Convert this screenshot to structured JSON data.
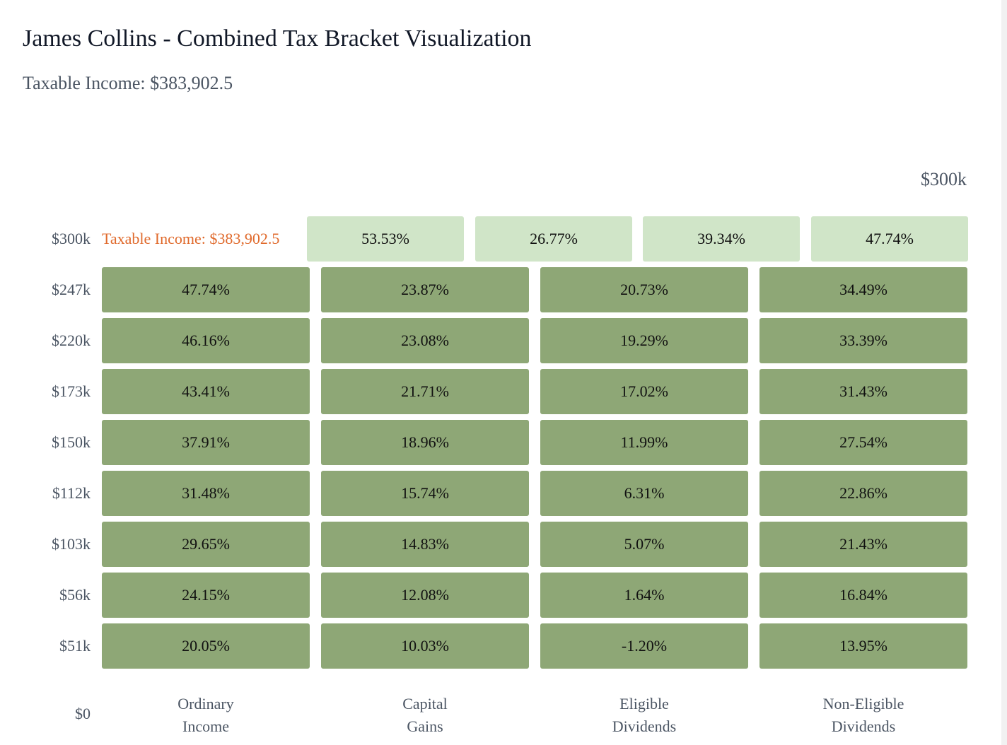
{
  "page": {
    "title": "James Collins - Combined Tax Bracket Visualization",
    "subtitle": "Taxable Income: $383,902.5",
    "top_tick": "$300k",
    "income_marker": "Taxable Income: $383,902.5"
  },
  "colors": {
    "filled_bracket": "#8ea776",
    "top_bracket": "#d0e5c8",
    "marker": "#e06a2c"
  },
  "chart_data": {
    "type": "heatmap",
    "title": "James Collins - Combined Tax Bracket Visualization",
    "subtitle": "Taxable Income: $383,902.5",
    "columns": [
      {
        "line1": "Ordinary",
        "line2": "Income"
      },
      {
        "line1": "Capital",
        "line2": "Gains"
      },
      {
        "line1": "Eligible",
        "line2": "Dividends"
      },
      {
        "line1": "Non-Eligible",
        "line2": "Dividends"
      }
    ],
    "y_tick_labels": [
      "$300k",
      "$247k",
      "$220k",
      "$173k",
      "$150k",
      "$112k",
      "$103k",
      "$56k",
      "$51k",
      "$0"
    ],
    "rows": [
      {
        "threshold": "$300k",
        "values": [
          "53.53%",
          "26.77%",
          "39.34%",
          "47.74%"
        ]
      },
      {
        "threshold": "$247k",
        "values": [
          "47.74%",
          "23.87%",
          "20.73%",
          "34.49%"
        ]
      },
      {
        "threshold": "$220k",
        "values": [
          "46.16%",
          "23.08%",
          "19.29%",
          "33.39%"
        ]
      },
      {
        "threshold": "$173k",
        "values": [
          "43.41%",
          "21.71%",
          "17.02%",
          "31.43%"
        ]
      },
      {
        "threshold": "$150k",
        "values": [
          "37.91%",
          "18.96%",
          "11.99%",
          "27.54%"
        ]
      },
      {
        "threshold": "$112k",
        "values": [
          "31.48%",
          "15.74%",
          "6.31%",
          "22.86%"
        ]
      },
      {
        "threshold": "$103k",
        "values": [
          "29.65%",
          "14.83%",
          "5.07%",
          "21.43%"
        ]
      },
      {
        "threshold": "$56k",
        "values": [
          "24.15%",
          "12.08%",
          "1.64%",
          "16.84%"
        ]
      },
      {
        "threshold": "$51k",
        "values": [
          "20.05%",
          "10.03%",
          "-1.20%",
          "13.95%"
        ]
      }
    ]
  }
}
